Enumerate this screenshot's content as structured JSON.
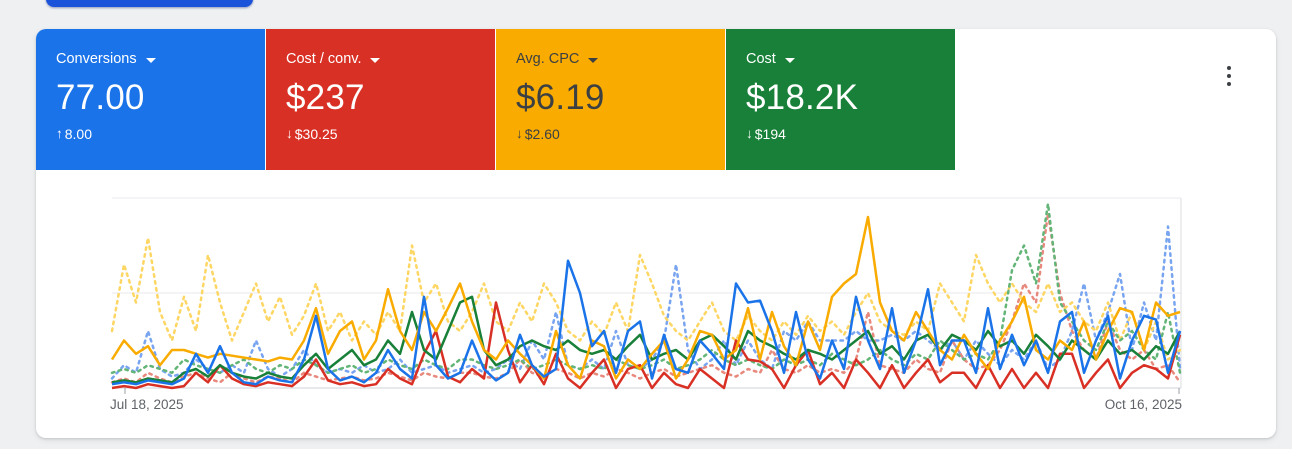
{
  "top_button": {
    "color": "#1b52da"
  },
  "cards": [
    {
      "id": "conversions",
      "label": "Conversions",
      "value": "77.00",
      "delta_arrow": "↑",
      "delta": "8.00",
      "delta_direction": "up",
      "bg": "#1a73e8",
      "text": "#ffffff"
    },
    {
      "id": "cost-per-conv",
      "label": "Cost / conv.",
      "value": "$237",
      "delta_arrow": "↓",
      "delta": "$30.25",
      "delta_direction": "down",
      "bg": "#d93025",
      "text": "#ffffff"
    },
    {
      "id": "avg-cpc",
      "label": "Avg. CPC",
      "value": "$6.19",
      "delta_arrow": "↓",
      "delta": "$2.60",
      "delta_direction": "down",
      "bg": "#f9ab00",
      "text": "#3c4043"
    },
    {
      "id": "cost",
      "label": "Cost",
      "value": "$18.2K",
      "delta_arrow": "↓",
      "delta": "$194",
      "delta_direction": "down",
      "bg": "#188038",
      "text": "#ffffff"
    }
  ],
  "overflow_menu": {
    "icon": "kebab-vertical-icon"
  },
  "chart_data": {
    "type": "line",
    "x_start_label": "Jul 18, 2025",
    "x_end_label": "Oct 16, 2025",
    "x_unit": "day",
    "x_points": 90,
    "ylim": [
      0,
      100
    ],
    "y_axis_labels": "none",
    "grid": "horizontal-3-lines",
    "legend": "none",
    "series": [
      {
        "id": "conversions-prev",
        "name": "Conversions (previous period)",
        "color": "#78a4f0",
        "dashed": true,
        "values": [
          5,
          12,
          8,
          30,
          10,
          6,
          8,
          15,
          10,
          8,
          12,
          8,
          25,
          10,
          6,
          10,
          20,
          12,
          8,
          10,
          8,
          12,
          8,
          10,
          15,
          8,
          10,
          12,
          8,
          10,
          12,
          8,
          10,
          15,
          10,
          25,
          15,
          40,
          12,
          10,
          15,
          10,
          30,
          12,
          10,
          15,
          25,
          65,
          20,
          10,
          15,
          25,
          12,
          25,
          15,
          10,
          30,
          25,
          35,
          25,
          25,
          25,
          30,
          25,
          25,
          28,
          25,
          30,
          25,
          20,
          25,
          15,
          25,
          18,
          12,
          20,
          15,
          25,
          10,
          15,
          30,
          55,
          25,
          40,
          60,
          20,
          45,
          25,
          85,
          10
        ]
      },
      {
        "id": "cost-per-conv-prev",
        "name": "Cost / conv. (previous period)",
        "color": "#e8897e",
        "dashed": true,
        "values": [
          3,
          5,
          3,
          8,
          5,
          3,
          6,
          8,
          5,
          3,
          8,
          5,
          3,
          6,
          5,
          3,
          8,
          6,
          4,
          5,
          6,
          4,
          5,
          8,
          6,
          4,
          8,
          6,
          5,
          8,
          8,
          6,
          5,
          8,
          15,
          8,
          6,
          10,
          8,
          5,
          8,
          6,
          10,
          8,
          5,
          8,
          10,
          6,
          8,
          10,
          12,
          8,
          6,
          10,
          8,
          20,
          10,
          8,
          12,
          8,
          10,
          8,
          15,
          40,
          12,
          10,
          8,
          15,
          10,
          8,
          25,
          15,
          10,
          12,
          20,
          35,
          55,
          45,
          92,
          50,
          30,
          20,
          15,
          35,
          20,
          15,
          20,
          10,
          12,
          3
        ]
      },
      {
        "id": "avg-cpc-prev",
        "name": "Avg. CPC (previous period)",
        "color": "#fdd663",
        "dashed": true,
        "values": [
          30,
          65,
          45,
          79,
          40,
          25,
          48,
          30,
          70,
          45,
          25,
          40,
          55,
          35,
          48,
          28,
          38,
          55,
          30,
          40,
          25,
          35,
          28,
          40,
          30,
          75,
          45,
          55,
          35,
          30,
          40,
          55,
          35,
          30,
          45,
          35,
          55,
          45,
          30,
          25,
          35,
          28,
          45,
          30,
          70,
          55,
          38,
          30,
          25,
          35,
          45,
          30,
          25,
          38,
          30,
          25,
          35,
          28,
          38,
          30,
          35,
          28,
          40,
          50,
          35,
          30,
          28,
          35,
          30,
          55,
          45,
          35,
          70,
          55,
          45,
          55,
          45,
          40,
          55,
          40,
          45,
          35,
          30,
          45,
          25,
          40,
          20,
          35,
          15,
          20
        ]
      },
      {
        "id": "cost-prev",
        "name": "Cost (previous period)",
        "color": "#63b577",
        "dashed": true,
        "values": [
          8,
          10,
          8,
          12,
          10,
          8,
          15,
          12,
          10,
          8,
          12,
          15,
          10,
          8,
          12,
          10,
          15,
          12,
          8,
          10,
          12,
          8,
          10,
          15,
          12,
          10,
          15,
          12,
          10,
          15,
          15,
          12,
          10,
          12,
          15,
          10,
          12,
          15,
          12,
          10,
          12,
          10,
          15,
          12,
          10,
          12,
          15,
          10,
          12,
          15,
          20,
          15,
          12,
          15,
          12,
          10,
          15,
          12,
          15,
          12,
          18,
          15,
          12,
          15,
          20,
          15,
          12,
          18,
          15,
          25,
          20,
          15,
          18,
          15,
          25,
          62,
          75,
          55,
          97,
          45,
          35,
          25,
          20,
          35,
          25,
          30,
          20,
          15,
          40,
          8
        ]
      },
      {
        "id": "cost-per-conv-now",
        "name": "Cost / conv. (current)",
        "color": "#d93025",
        "dashed": false,
        "values": [
          0,
          1,
          0,
          2,
          1,
          0,
          1,
          8,
          3,
          12,
          5,
          2,
          1,
          3,
          2,
          1,
          6,
          15,
          4,
          2,
          3,
          1,
          2,
          10,
          5,
          2,
          18,
          30,
          6,
          3,
          10,
          5,
          45,
          20,
          3,
          12,
          2,
          18,
          5,
          0,
          8,
          15,
          0,
          10,
          12,
          0,
          8,
          2,
          0,
          10,
          5,
          0,
          25,
          15,
          14,
          10,
          0,
          12,
          20,
          2,
          8,
          0,
          15,
          8,
          0,
          12,
          0,
          8,
          15,
          3,
          8,
          8,
          0,
          12,
          0,
          10,
          0,
          8,
          0,
          18,
          18,
          0,
          8,
          15,
          0,
          8,
          12,
          10,
          5,
          28
        ]
      },
      {
        "id": "cost-now",
        "name": "Cost (current)",
        "color": "#188038",
        "dashed": false,
        "values": [
          3,
          4,
          3,
          5,
          4,
          3,
          8,
          10,
          6,
          12,
          8,
          6,
          5,
          8,
          6,
          5,
          12,
          18,
          10,
          15,
          20,
          12,
          15,
          25,
          18,
          40,
          20,
          15,
          30,
          45,
          48,
          20,
          12,
          15,
          22,
          25,
          22,
          20,
          25,
          20,
          18,
          20,
          15,
          22,
          28,
          15,
          18,
          20,
          15,
          25,
          28,
          22,
          15,
          30,
          25,
          22,
          18,
          15,
          20,
          18,
          15,
          20,
          25,
          30,
          18,
          22,
          15,
          25,
          28,
          20,
          28,
          25,
          20,
          30,
          22,
          25,
          18,
          28,
          22,
          15,
          25,
          20,
          15,
          25,
          18,
          20,
          15,
          22,
          18,
          30
        ]
      },
      {
        "id": "avg-cpc-now",
        "name": "Avg. CPC (current)",
        "color": "#f9ab00",
        "dashed": false,
        "values": [
          15,
          25,
          18,
          22,
          12,
          20,
          20,
          18,
          16,
          18,
          17,
          16,
          15,
          14,
          16,
          15,
          25,
          42,
          18,
          30,
          35,
          15,
          25,
          52,
          30,
          20,
          40,
          30,
          42,
          55,
          35,
          20,
          15,
          25,
          18,
          12,
          5,
          30,
          12,
          5,
          25,
          22,
          5,
          15,
          10,
          18,
          25,
          5,
          15,
          30,
          28,
          15,
          20,
          42,
          15,
          40,
          22,
          12,
          35,
          20,
          48,
          55,
          60,
          90,
          45,
          30,
          25,
          40,
          30,
          20,
          15,
          28,
          18,
          10,
          25,
          35,
          48,
          20,
          15,
          25,
          20,
          35,
          15,
          30,
          42,
          40,
          20,
          45,
          38,
          40
        ]
      },
      {
        "id": "conversions-now",
        "name": "Conversions (current)",
        "color": "#1a73e8",
        "dashed": false,
        "values": [
          2,
          3,
          2,
          4,
          3,
          2,
          5,
          18,
          8,
          22,
          8,
          3,
          2,
          6,
          4,
          3,
          15,
          38,
          10,
          4,
          6,
          3,
          8,
          20,
          10,
          5,
          48,
          12,
          5,
          8,
          25,
          10,
          4,
          8,
          28,
          12,
          6,
          10,
          67,
          50,
          22,
          30,
          8,
          30,
          35,
          5,
          28,
          10,
          8,
          25,
          18,
          10,
          55,
          45,
          46,
          30,
          8,
          40,
          15,
          5,
          25,
          10,
          48,
          25,
          10,
          42,
          8,
          25,
          52,
          12,
          25,
          25,
          8,
          42,
          10,
          28,
          12,
          25,
          8,
          35,
          40,
          8,
          25,
          38,
          5,
          25,
          38,
          36,
          8,
          30
        ]
      }
    ]
  }
}
